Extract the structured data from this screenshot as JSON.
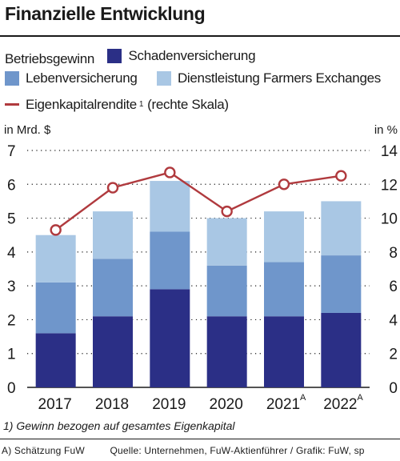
{
  "title": "Finanzielle Entwicklung",
  "legend": {
    "heading": "Betriebsgewinn",
    "items": [
      {
        "label": "Schadenversicherung",
        "color": "#2b2f86"
      },
      {
        "label": "Lebenversicherung",
        "color": "#6f96cb"
      },
      {
        "label": "Dienstleistung Farmers Exchanges",
        "color": "#a9c7e4"
      }
    ],
    "line_label": "Eigenkapitalrendite",
    "line_label_note": "1",
    "line_label_suffix": "(rechte Skala)",
    "line_color": "#b03a3e"
  },
  "axis": {
    "left_unit": "in Mrd. $",
    "right_unit": "in %"
  },
  "chart_data": {
    "type": "bar",
    "stacked": true,
    "categories": [
      "2017",
      "2018",
      "2019",
      "2020",
      "2021",
      "2022"
    ],
    "category_notes": [
      "",
      "",
      "",
      "",
      "A",
      "A"
    ],
    "series": [
      {
        "name": "Schadenversicherung",
        "values": [
          1.6,
          2.1,
          2.9,
          2.1,
          2.1,
          2.2
        ],
        "color": "#2b2f86"
      },
      {
        "name": "Lebenversicherung",
        "values": [
          1.5,
          1.7,
          1.7,
          1.5,
          1.6,
          1.7
        ],
        "color": "#6f96cb"
      },
      {
        "name": "Dienstleistung Farmers Exchanges",
        "values": [
          1.4,
          1.4,
          1.5,
          1.4,
          1.5,
          1.6
        ],
        "color": "#a9c7e4"
      }
    ],
    "line_series": {
      "name": "Eigenkapitalrendite",
      "axis": "right",
      "values": [
        9.3,
        11.8,
        12.7,
        10.4,
        12.0,
        12.5
      ],
      "color": "#b03a3e"
    },
    "ylim_left": [
      0,
      7
    ],
    "yticks_left": [
      0,
      1,
      2,
      3,
      4,
      5,
      6,
      7
    ],
    "ylim_right": [
      0,
      14
    ],
    "yticks_right": [
      0,
      2,
      4,
      6,
      8,
      10,
      12,
      14
    ],
    "ylabel_left": "in Mrd. $",
    "ylabel_right": "in %",
    "grid": "dotted horizontal"
  },
  "footnote": "1) Gewinn bezogen auf gesamtes Eigenkapital",
  "source": {
    "note": "A) Schätzung FuW",
    "credits": "Quelle: Unternehmen, FuW-Aktienführer / Grafik: FuW, sp"
  }
}
